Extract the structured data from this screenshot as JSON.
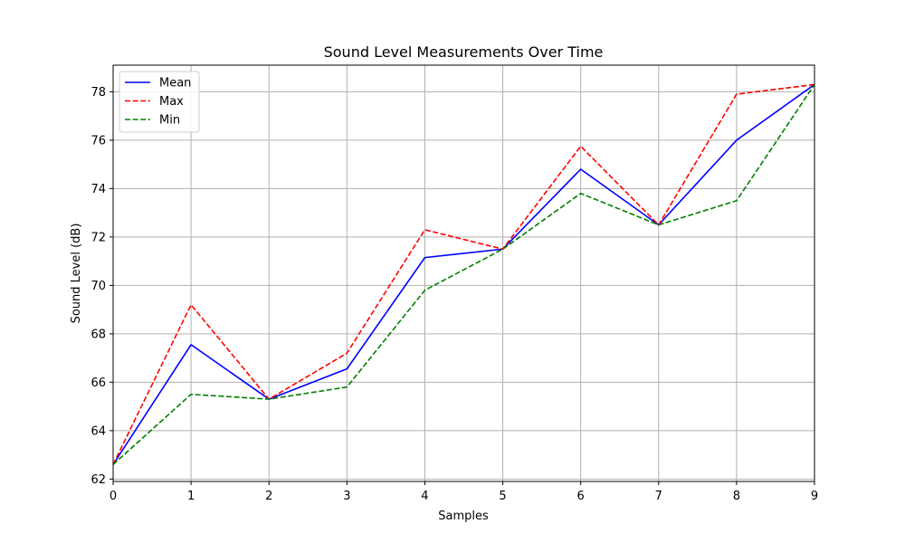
{
  "chart_data": {
    "type": "line",
    "title": "Sound Level Measurements Over Time",
    "xlabel": "Samples",
    "ylabel": "Sound Level (dB)",
    "x": [
      0,
      1,
      2,
      3,
      4,
      5,
      6,
      7,
      8,
      9
    ],
    "xlim": [
      0,
      9
    ],
    "ylim": [
      61.9,
      79.1
    ],
    "xticks": [
      "0",
      "1",
      "2",
      "3",
      "4",
      "5",
      "6",
      "7",
      "8",
      "9"
    ],
    "yticks": [
      "62",
      "64",
      "66",
      "68",
      "70",
      "72",
      "74",
      "76",
      "78"
    ],
    "grid": true,
    "legend_position": "upper-left",
    "series": [
      {
        "name": "Mean",
        "color": "#0000ff",
        "dash": "solid",
        "values": [
          62.6,
          67.55,
          65.3,
          66.55,
          71.15,
          71.5,
          74.8,
          72.5,
          76.0,
          78.3
        ]
      },
      {
        "name": "Max",
        "color": "#ff0000",
        "dash": "dashed",
        "values": [
          62.6,
          69.2,
          65.3,
          67.2,
          72.3,
          71.5,
          75.75,
          72.5,
          77.9,
          78.3
        ]
      },
      {
        "name": "Min",
        "color": "#008000",
        "dash": "dashed",
        "values": [
          62.6,
          65.5,
          65.3,
          65.8,
          69.8,
          71.5,
          73.8,
          72.5,
          73.5,
          78.3
        ]
      }
    ]
  }
}
